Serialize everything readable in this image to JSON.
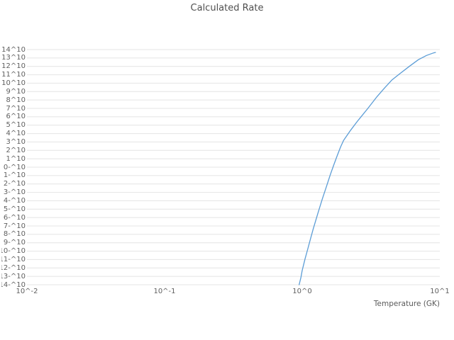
{
  "chart_data": {
    "type": "line",
    "title": "Calculated Rate",
    "xlabel": "Temperature (GK)",
    "ylabel": "",
    "x_scale": "log",
    "y_scale": "log",
    "xlim_exp": [
      -2,
      1
    ],
    "ylim_exp": [
      -14,
      14
    ],
    "grid": true,
    "legend": false,
    "line_color": "#5C9DD6",
    "grid_color": "#e4e4e4",
    "text_color": "#5f5f5f",
    "background_color": "#ffffff",
    "x_tick_labels": [
      "10^-2",
      "10^-1",
      "10^0",
      "10^1"
    ],
    "x_tick_exponents": [
      -2,
      -1,
      0,
      1
    ],
    "y_tick_labels": [
      "10^14",
      "10^13",
      "10^12",
      "10^11",
      "10^10",
      "10^9",
      "10^8",
      "10^7",
      "10^6",
      "10^5",
      "10^4",
      "10^3",
      "10^2",
      "10^1",
      "10^-0",
      "10^-1",
      "10^-2",
      "10^-3",
      "10^-4",
      "10^-5",
      "10^-6",
      "10^-7",
      "10^-8",
      "10^-9",
      "10^-10",
      "10^-11",
      "10^-12",
      "10^-13",
      "10^-14"
    ],
    "y_tick_exponents": [
      14,
      13,
      12,
      11,
      10,
      9,
      8,
      7,
      6,
      5,
      4,
      3,
      2,
      1,
      0,
      -1,
      -2,
      -3,
      -4,
      -5,
      -6,
      -7,
      -8,
      -9,
      -10,
      -11,
      -12,
      -13,
      -14
    ],
    "series": [
      {
        "name": "Calculated Rate",
        "x_units": "GK",
        "y_units": "log10(rate)",
        "points": [
          [
            0.95,
            -14.0
          ],
          [
            0.98,
            -13.1
          ],
          [
            1.0,
            -12.3
          ],
          [
            1.05,
            -10.9
          ],
          [
            1.1,
            -9.7
          ],
          [
            1.15,
            -8.5
          ],
          [
            1.2,
            -7.4
          ],
          [
            1.3,
            -5.5
          ],
          [
            1.4,
            -3.8
          ],
          [
            1.5,
            -2.3
          ],
          [
            1.6,
            -0.9
          ],
          [
            1.7,
            0.3
          ],
          [
            1.8,
            1.4
          ],
          [
            1.9,
            2.4
          ],
          [
            2.0,
            3.2
          ],
          [
            2.25,
            4.4
          ],
          [
            2.5,
            5.4
          ],
          [
            3.0,
            7.0
          ],
          [
            3.5,
            8.4
          ],
          [
            4.0,
            9.5
          ],
          [
            4.5,
            10.4
          ],
          [
            5.0,
            11.0
          ],
          [
            6.0,
            12.0
          ],
          [
            7.0,
            12.8
          ],
          [
            8.0,
            13.3
          ],
          [
            9.0,
            13.6
          ],
          [
            9.3,
            13.66
          ]
        ]
      }
    ]
  }
}
